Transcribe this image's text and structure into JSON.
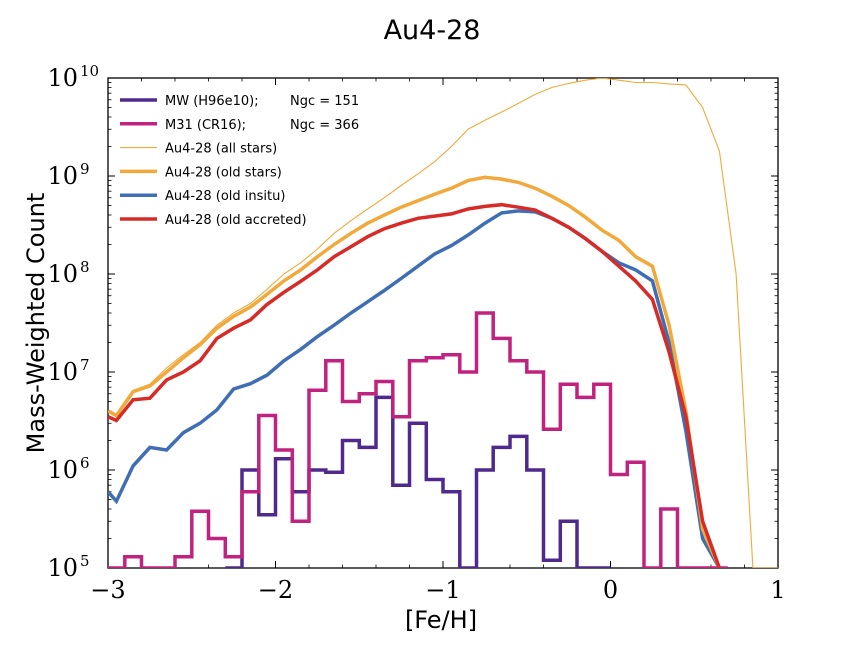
{
  "chart_data": {
    "type": "line",
    "title": "Au4-28",
    "xlabel": "[Fe/H]",
    "ylabel": "Mass-Weighted Count",
    "xlim": [
      -3,
      1
    ],
    "ylim": [
      100000,
      10000000000
    ],
    "yscale": "log",
    "xticks": [
      -3,
      -2,
      -1,
      0,
      1
    ],
    "xtick_labels": [
      "−3",
      "−2",
      "−1",
      "0",
      "1"
    ],
    "yticks": [
      5,
      6,
      7,
      8,
      9,
      10
    ],
    "ytick_base": "10",
    "legend_position": "top-left",
    "grid": false,
    "series": [
      {
        "name": "MW (H96e10);",
        "extra": "Ngc = 151",
        "style": "step",
        "color": "#4f2a8c",
        "width": 3.5,
        "x": [
          -2.3,
          -2.2,
          -2.1,
          -2.0,
          -1.9,
          -1.8,
          -1.7,
          -1.6,
          -1.5,
          -1.4,
          -1.3,
          -1.2,
          -1.1,
          -1.0,
          -0.9,
          -0.8,
          -0.7,
          -0.6,
          -0.5,
          -0.4,
          -0.3,
          -0.2,
          -0.1
        ],
        "y": [
          100000.0,
          1000000.0,
          350000.0,
          1300000.0,
          600000.0,
          1000000.0,
          950000.0,
          2000000.0,
          1700000.0,
          5500000.0,
          700000.0,
          3000000.0,
          800000.0,
          600000.0,
          100000.0,
          1000000.0,
          1700000.0,
          2200000.0,
          1000000.0,
          120000.0,
          300000.0,
          100000.0,
          100000.0
        ]
      },
      {
        "name": "M31 (CR16);",
        "extra": "Ngc = 366",
        "style": "step",
        "color": "#c2227f",
        "width": 3.5,
        "x": [
          -3.0,
          -2.9,
          -2.8,
          -2.7,
          -2.6,
          -2.5,
          -2.4,
          -2.3,
          -2.2,
          -2.1,
          -2.0,
          -1.9,
          -1.8,
          -1.7,
          -1.6,
          -1.5,
          -1.4,
          -1.3,
          -1.2,
          -1.1,
          -1.0,
          -0.9,
          -0.8,
          -0.7,
          -0.6,
          -0.5,
          -0.4,
          -0.3,
          -0.2,
          -0.1,
          0.0,
          0.1,
          0.2,
          0.3,
          0.4,
          0.5,
          0.6
        ],
        "y": [
          100000.0,
          130000.0,
          100000.0,
          100000.0,
          130000.0,
          380000.0,
          200000.0,
          130000.0,
          600000.0,
          3600000.0,
          1600000.0,
          300000.0,
          6500000.0,
          13000000.0,
          5000000.0,
          6000000.0,
          8000000.0,
          3500000.0,
          13000000.0,
          14000000.0,
          15000000.0,
          10000000.0,
          40000000.0,
          22000000.0,
          13000000.0,
          10000000.0,
          2600000.0,
          7500000.0,
          5500000.0,
          7500000.0,
          900000.0,
          1200000.0,
          100000.0,
          400000.0,
          100000.0,
          100000.0,
          100000.0
        ]
      },
      {
        "name": "Au4-28 (all stars)",
        "style": "line",
        "color": "#f2a93b",
        "width": 1.1,
        "x": [
          -3.0,
          -2.95,
          -2.85,
          -2.75,
          -2.65,
          -2.55,
          -2.45,
          -2.35,
          -2.25,
          -2.15,
          -2.05,
          -1.95,
          -1.85,
          -1.75,
          -1.65,
          -1.55,
          -1.45,
          -1.35,
          -1.25,
          -1.15,
          -1.05,
          -0.95,
          -0.85,
          -0.75,
          -0.65,
          -0.55,
          -0.45,
          -0.35,
          -0.25,
          -0.15,
          -0.05,
          0.05,
          0.15,
          0.25,
          0.35,
          0.45,
          0.55,
          0.65,
          0.75,
          0.85,
          0.95,
          1.0
        ],
        "y": [
          4000000.0,
          3700000.0,
          6500000.0,
          7500000.0,
          11000000.0,
          15000000.0,
          20000000.0,
          30000000.0,
          40000000.0,
          50000000.0,
          70000000.0,
          100000000.0,
          130000000.0,
          180000000.0,
          260000000.0,
          350000000.0,
          460000000.0,
          600000000.0,
          800000000.0,
          1050000000.0,
          1400000000.0,
          2000000000.0,
          3000000000.0,
          3700000000.0,
          4500000000.0,
          5500000000.0,
          6800000000.0,
          8000000000.0,
          8800000000.0,
          9500000000.0,
          10000000000.0,
          9500000000.0,
          9000000000.0,
          9000000000.0,
          8700000000.0,
          8500000000.0,
          5000000000.0,
          1800000000.0,
          100000000.0,
          100000.0,
          100000.0,
          100000.0
        ]
      },
      {
        "name": "Au4-28 (old stars)",
        "style": "line",
        "color": "#f2a93b",
        "width": 3.5,
        "x": [
          -3.0,
          -2.95,
          -2.85,
          -2.75,
          -2.65,
          -2.55,
          -2.45,
          -2.35,
          -2.25,
          -2.15,
          -2.05,
          -1.95,
          -1.85,
          -1.75,
          -1.65,
          -1.55,
          -1.45,
          -1.35,
          -1.25,
          -1.15,
          -1.05,
          -0.95,
          -0.85,
          -0.75,
          -0.65,
          -0.55,
          -0.45,
          -0.35,
          -0.25,
          -0.15,
          -0.05,
          0.05,
          0.15,
          0.25,
          0.35,
          0.45,
          0.55,
          0.65
        ],
        "y": [
          4000000.0,
          3600000.0,
          6300000.0,
          7200000.0,
          10000000.0,
          14000000.0,
          19000000.0,
          28000000.0,
          37000000.0,
          46000000.0,
          62000000.0,
          85000000.0,
          110000000.0,
          150000000.0,
          200000000.0,
          260000000.0,
          330000000.0,
          400000000.0,
          480000000.0,
          560000000.0,
          650000000.0,
          750000000.0,
          900000000.0,
          970000000.0,
          930000000.0,
          860000000.0,
          750000000.0,
          620000000.0,
          500000000.0,
          380000000.0,
          280000000.0,
          220000000.0,
          150000000.0,
          120000000.0,
          30000000.0,
          4000000.0,
          250000.0,
          100000.0
        ]
      },
      {
        "name": "Au4-28 (old insitu)",
        "style": "line",
        "color": "#3f6eb5",
        "width": 3.5,
        "x": [
          -3.0,
          -2.95,
          -2.85,
          -2.75,
          -2.65,
          -2.55,
          -2.45,
          -2.35,
          -2.25,
          -2.15,
          -2.05,
          -1.95,
          -1.85,
          -1.75,
          -1.65,
          -1.55,
          -1.45,
          -1.35,
          -1.25,
          -1.15,
          -1.05,
          -0.95,
          -0.85,
          -0.75,
          -0.65,
          -0.55,
          -0.45,
          -0.35,
          -0.25,
          -0.15,
          -0.05,
          0.05,
          0.15,
          0.25,
          0.35,
          0.45,
          0.55,
          0.65
        ],
        "y": [
          600000.0,
          480000.0,
          1100000.0,
          1700000.0,
          1600000.0,
          2400000.0,
          3000000.0,
          4100000.0,
          6700000.0,
          7600000.0,
          9300000.0,
          13000000.0,
          17000000.0,
          23000000.0,
          30000000.0,
          40000000.0,
          52000000.0,
          68000000.0,
          90000000.0,
          120000000.0,
          160000000.0,
          195000000.0,
          250000000.0,
          330000000.0,
          420000000.0,
          440000000.0,
          430000000.0,
          370000000.0,
          300000000.0,
          230000000.0,
          170000000.0,
          130000000.0,
          110000000.0,
          85000000.0,
          20000000.0,
          2500000.0,
          200000.0,
          100000.0
        ]
      },
      {
        "name": "Au4-28 (old accreted)",
        "style": "line",
        "color": "#d62b27",
        "width": 3.5,
        "x": [
          -3.0,
          -2.95,
          -2.85,
          -2.75,
          -2.65,
          -2.55,
          -2.45,
          -2.35,
          -2.25,
          -2.15,
          -2.05,
          -1.95,
          -1.85,
          -1.75,
          -1.65,
          -1.55,
          -1.45,
          -1.35,
          -1.25,
          -1.15,
          -1.05,
          -0.95,
          -0.85,
          -0.75,
          -0.65,
          -0.55,
          -0.45,
          -0.35,
          -0.25,
          -0.15,
          -0.05,
          0.05,
          0.15,
          0.25,
          0.35,
          0.45,
          0.55,
          0.65
        ],
        "y": [
          3500000.0,
          3200000.0,
          5200000.0,
          5400000.0,
          8300000.0,
          10000000.0,
          13000000.0,
          22000000.0,
          28000000.0,
          34000000.0,
          49000000.0,
          65000000.0,
          84000000.0,
          110000000.0,
          150000000.0,
          190000000.0,
          240000000.0,
          290000000.0,
          330000000.0,
          370000000.0,
          390000000.0,
          410000000.0,
          460000000.0,
          490000000.0,
          510000000.0,
          480000000.0,
          450000000.0,
          370000000.0,
          300000000.0,
          230000000.0,
          170000000.0,
          120000000.0,
          85000000.0,
          55000000.0,
          16000000.0,
          3500000.0,
          300000.0,
          100000.0
        ]
      }
    ]
  }
}
